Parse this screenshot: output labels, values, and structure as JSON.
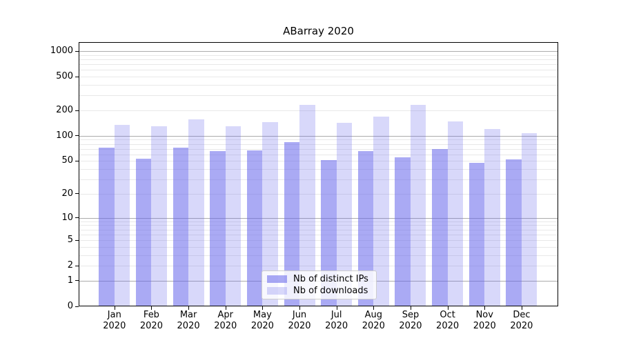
{
  "chart_data": {
    "type": "bar",
    "title": "ABarray 2020",
    "categories": [
      "Jan 2020",
      "Feb 2020",
      "Mar 2020",
      "Apr 2020",
      "May 2020",
      "Jun 2020",
      "Jul 2020",
      "Aug 2020",
      "Sep 2020",
      "Oct 2020",
      "Nov 2020",
      "Dec 2020"
    ],
    "series": [
      {
        "name": "Nb of distinct IPs",
        "color": "rgba(100,100,235,0.55)",
        "values": [
          72,
          53,
          73,
          66,
          67,
          84,
          51,
          66,
          55,
          70,
          48,
          52
        ]
      },
      {
        "name": "Nb of downloads",
        "color": "rgba(100,100,235,0.25)",
        "values": [
          135,
          129,
          157,
          130,
          146,
          233,
          143,
          168,
          233,
          149,
          120,
          108
        ]
      }
    ],
    "yscale": "log1p",
    "ylim": [
      0,
      1250
    ],
    "yticks": [
      1000,
      500,
      200,
      100,
      50,
      20,
      10,
      5,
      2,
      1,
      0
    ],
    "major_grid_ticks": [
      1,
      10,
      100,
      1000
    ],
    "grid": true,
    "legend_position": "lower center",
    "colors": {
      "bar_distinct_ips_rendered": "#acacf5",
      "bar_downloads_rendered": "#d9d9fa",
      "major_grid": "#ababab",
      "minor_grid": "#e8e8e8",
      "axis": "#000000"
    }
  }
}
